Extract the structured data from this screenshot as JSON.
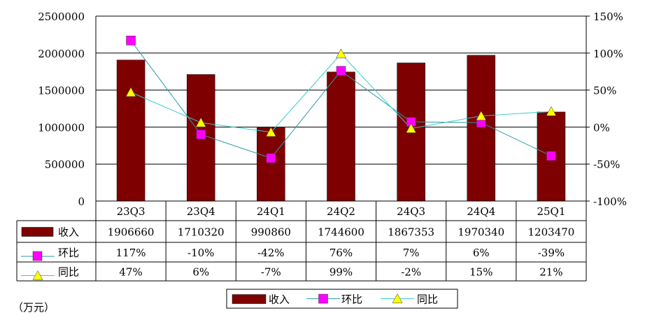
{
  "chart_data": {
    "type": "bar",
    "categories": [
      "23Q3",
      "23Q4",
      "24Q1",
      "24Q2",
      "24Q3",
      "24Q4",
      "25Q1"
    ],
    "series": [
      {
        "name": "收入",
        "type": "bar",
        "axis": "left",
        "values": [
          1906660,
          1710320,
          990860,
          1744600,
          1867353,
          1970340,
          1203470
        ],
        "labels": [
          "1906660",
          "1710320",
          "990860",
          "1744600",
          "1867353",
          "1970340",
          "1203470"
        ],
        "color": "#7f0000"
      },
      {
        "name": "环比",
        "type": "line",
        "axis": "right",
        "values": [
          117,
          -10,
          -42,
          76,
          7,
          6,
          -39
        ],
        "labels": [
          "117%",
          "-10%",
          "-42%",
          "76%",
          "7%",
          "6%",
          "-39%"
        ],
        "marker": "square",
        "marker_color": "#ff00ff",
        "line_color": "#2a9aa8"
      },
      {
        "name": "同比",
        "type": "line",
        "axis": "right",
        "values": [
          47,
          6,
          -7,
          99,
          -2,
          15,
          21
        ],
        "labels": [
          "47%",
          "6%",
          "-7%",
          "99%",
          "-2%",
          "15%",
          "21%"
        ],
        "marker": "triangle",
        "marker_color": "#ffff00",
        "line_color": "#33cccc"
      }
    ],
    "y_left": {
      "range": [
        0,
        2500000
      ],
      "ticks": [
        "0",
        "500000",
        "1000000",
        "1500000",
        "2000000",
        "2500000"
      ]
    },
    "y_right": {
      "range": [
        -100,
        150
      ],
      "ticks": [
        "-100%",
        "-50%",
        "0%",
        "50%",
        "100%",
        "150%"
      ]
    },
    "grid": true,
    "legend": {
      "position": "bottom",
      "items": [
        "收入",
        "环比",
        "同比"
      ]
    },
    "data_table": true,
    "unit_note": "（万元）"
  }
}
